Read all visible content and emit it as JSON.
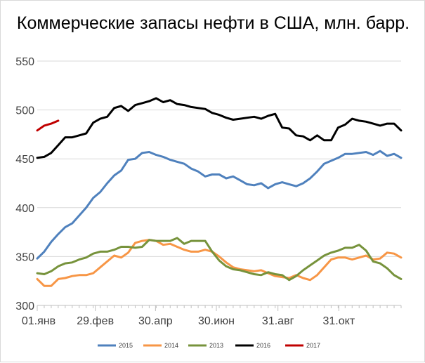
{
  "chart_data": {
    "type": "line",
    "title": "Коммерческие запасы нефти в США, млн. барр.",
    "ylim": [
      300,
      550
    ],
    "yticks": [
      300,
      350,
      400,
      450,
      500,
      550
    ],
    "xlim": [
      1,
      53
    ],
    "xticks": [
      {
        "week": 1,
        "label": "01.янв"
      },
      {
        "week": 9.3,
        "label": "29.фев"
      },
      {
        "week": 17.9,
        "label": "30.апр"
      },
      {
        "week": 26.6,
        "label": "30.июн"
      },
      {
        "week": 35.4,
        "label": "31.авг"
      },
      {
        "week": 44.1,
        "label": "31.окт"
      }
    ],
    "grid": "horizontal",
    "legend_position": "bottom",
    "series": [
      {
        "name": "2015",
        "color": "#4f81bd",
        "values": [
          348,
          355,
          365,
          373,
          380,
          384,
          392,
          400,
          410,
          416,
          425,
          433,
          438,
          449,
          450,
          456,
          457,
          454,
          452,
          449,
          447,
          445,
          440,
          437,
          432,
          434,
          434,
          430,
          432,
          428,
          424,
          423,
          425,
          420,
          424,
          426,
          424,
          422,
          425,
          430,
          437,
          445,
          448,
          451,
          455,
          455,
          456,
          457,
          454,
          458,
          453,
          455,
          451
        ]
      },
      {
        "name": "2014",
        "color": "#f79646",
        "values": [
          327,
          320,
          320,
          327,
          328,
          330,
          331,
          331,
          333,
          339,
          345,
          351,
          349,
          354,
          364,
          366,
          367,
          366,
          362,
          363,
          360,
          357,
          355,
          355,
          357,
          355,
          350,
          344,
          339,
          337,
          336,
          335,
          336,
          333,
          330,
          329,
          328,
          331,
          328,
          326,
          331,
          339,
          347,
          349,
          349,
          347,
          349,
          351,
          347,
          348,
          354,
          353,
          349
        ]
      },
      {
        "name": "2013",
        "color": "#77933c",
        "values": [
          333,
          332,
          335,
          340,
          343,
          344,
          347,
          349,
          353,
          355,
          355,
          357,
          360,
          360,
          359,
          360,
          367,
          366,
          366,
          366,
          369,
          363,
          366,
          366,
          366,
          355,
          346,
          340,
          337,
          336,
          334,
          332,
          331,
          334,
          332,
          331,
          326,
          330,
          336,
          341,
          346,
          351,
          354,
          356,
          359,
          359,
          362,
          356,
          345,
          343,
          338,
          331,
          327
        ]
      },
      {
        "name": "2016",
        "color": "#000000",
        "values": [
          451,
          452,
          456,
          464,
          472,
          472,
          474,
          476,
          487,
          491,
          493,
          502,
          504,
          499,
          505,
          507,
          509,
          512,
          508,
          510,
          506,
          505,
          503,
          502,
          501,
          497,
          495,
          492,
          490,
          491,
          492,
          493,
          491,
          494,
          496,
          482,
          481,
          474,
          473,
          469,
          474,
          469,
          469,
          482,
          485,
          491,
          489,
          488,
          486,
          484,
          486,
          486,
          479
        ]
      },
      {
        "name": "2017",
        "color": "#c00000",
        "values": [
          479,
          484,
          486,
          489
        ]
      }
    ]
  }
}
